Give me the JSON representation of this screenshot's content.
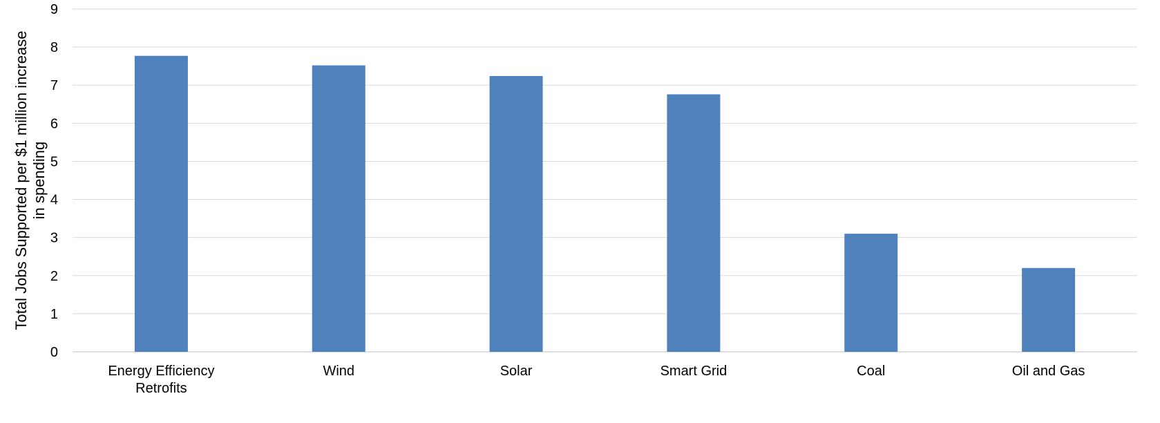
{
  "chart_data": {
    "type": "bar",
    "title": "",
    "xlabel": "",
    "ylabel": "Total Jobs Supported per $1 million increase in spending",
    "ylabel_lines": [
      "Total Jobs Supported per $1 million increase",
      "in spending"
    ],
    "categories": [
      "Energy Efficiency Retrofits",
      "Wind",
      "Solar",
      "Smart Grid",
      "Coal",
      "Oil and Gas"
    ],
    "category_lines": [
      [
        "Energy Efficiency",
        "Retrofits"
      ],
      [
        "Wind"
      ],
      [
        "Solar"
      ],
      [
        "Smart Grid"
      ],
      [
        "Coal"
      ],
      [
        "Oil and Gas"
      ]
    ],
    "values": [
      7.77,
      7.52,
      7.24,
      6.76,
      3.1,
      2.2
    ],
    "ylim": [
      0,
      9
    ],
    "yticks": [
      0,
      1,
      2,
      3,
      4,
      5,
      6,
      7,
      8,
      9
    ],
    "grid": true,
    "legend": "none",
    "bar_color": "#4f81bd",
    "grid_color": "#d9d9d9"
  }
}
